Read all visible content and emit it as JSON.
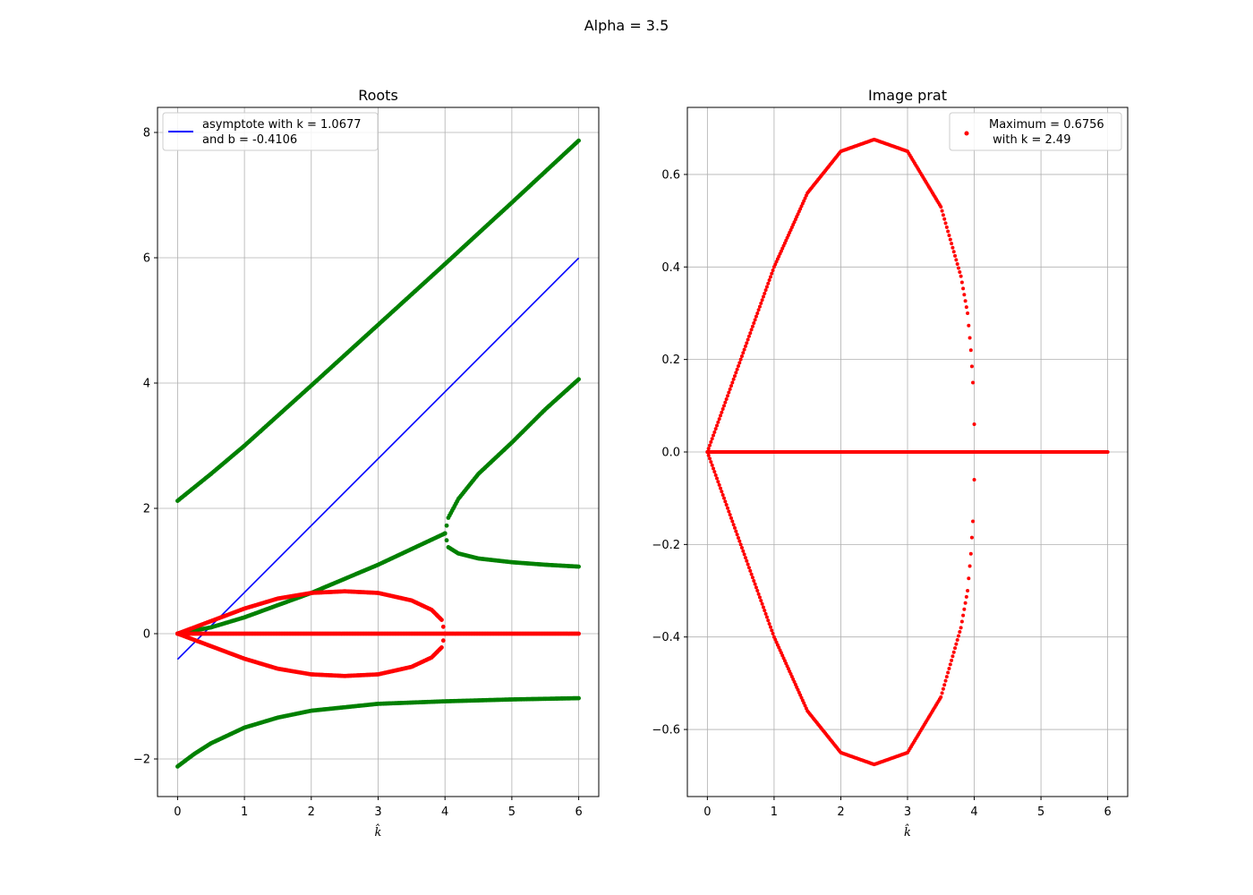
{
  "figure": {
    "suptitle": "Alpha = 3.5"
  },
  "chart_data": [
    {
      "type": "scatter",
      "title": "Roots",
      "xlabel": "k̂",
      "ylabel": "",
      "xlim": [
        -0.3,
        6.3
      ],
      "ylim": [
        -2.6,
        8.4
      ],
      "xticks": [
        0,
        1,
        2,
        3,
        4,
        5,
        6
      ],
      "yticks": [
        -2,
        0,
        2,
        4,
        6,
        8
      ],
      "grid": true,
      "legend_position": "top-left",
      "legend": [
        {
          "label_line1": "asymptote with k = 1.0677",
          "label_line2": "and b = -0.4106",
          "color": "#0000ff",
          "marker": "line"
        }
      ],
      "asymptote": {
        "slope": 1.0677,
        "intercept": -0.4106,
        "x": [
          0,
          6
        ],
        "color": "#0000ff"
      },
      "series_colors": {
        "real_part": "#008000",
        "imag_part": "#ff0000"
      },
      "series": [
        {
          "kind": "real",
          "x": [
            0,
            0.5,
            1,
            2,
            3,
            4,
            5,
            6
          ],
          "y": [
            2.12,
            2.55,
            3.0,
            3.96,
            4.93,
            5.9,
            6.88,
            7.87
          ]
        },
        {
          "kind": "real",
          "x": [
            0,
            0.5,
            1,
            2,
            3,
            4
          ],
          "y": [
            0,
            0.1,
            0.26,
            0.65,
            1.1,
            1.6
          ]
        },
        {
          "kind": "real",
          "x": [
            4,
            4.05,
            4.2,
            4.5,
            5,
            5.5,
            6
          ],
          "y": [
            1.6,
            1.85,
            2.15,
            2.55,
            3.05,
            3.58,
            4.06
          ]
        },
        {
          "kind": "real",
          "x": [
            4,
            4.05,
            4.2,
            4.5,
            5,
            5.5,
            6
          ],
          "y": [
            1.6,
            1.38,
            1.28,
            1.2,
            1.14,
            1.1,
            1.07
          ]
        },
        {
          "kind": "real",
          "x": [
            0,
            0.25,
            0.5,
            1,
            1.5,
            2,
            3,
            4,
            5,
            6
          ],
          "y": [
            -2.12,
            -1.92,
            -1.75,
            -1.5,
            -1.34,
            -1.23,
            -1.12,
            -1.08,
            -1.05,
            -1.03
          ]
        },
        {
          "kind": "imag",
          "x": [
            0,
            0.5,
            1,
            1.5,
            2,
            2.5,
            3,
            3.5,
            3.8,
            3.95,
            4.0
          ],
          "y": [
            0,
            0.2,
            0.4,
            0.56,
            0.65,
            0.6756,
            0.65,
            0.53,
            0.38,
            0.22,
            0
          ]
        },
        {
          "kind": "imag",
          "x": [
            0,
            0.5,
            1,
            1.5,
            2,
            2.5,
            3,
            3.5,
            3.8,
            3.95,
            4.0
          ],
          "y": [
            0,
            -0.2,
            -0.4,
            -0.56,
            -0.65,
            -0.6756,
            -0.65,
            -0.53,
            -0.38,
            -0.22,
            0
          ]
        },
        {
          "kind": "imag",
          "x": [
            0,
            6
          ],
          "y": [
            0,
            0
          ]
        }
      ]
    },
    {
      "type": "scatter",
      "title": "Image prat",
      "xlabel": "k̂",
      "ylabel": "",
      "xlim": [
        -0.3,
        6.3
      ],
      "ylim": [
        -0.745,
        0.745
      ],
      "xticks": [
        0,
        1,
        2,
        3,
        4,
        5,
        6
      ],
      "yticks": [
        -0.6,
        -0.4,
        -0.2,
        0.0,
        0.2,
        0.4,
        0.6
      ],
      "grid": true,
      "legend_position": "top-right",
      "legend": [
        {
          "label_line1": "Maximum = 0.6756",
          "label_line2": " with k = 2.49",
          "color": "#ff0000",
          "marker": "dot"
        }
      ],
      "point_color": "#ff0000",
      "series": [
        {
          "kind": "upper",
          "x": [
            0,
            0.25,
            0.5,
            1,
            1.5,
            2,
            2.5,
            3,
            3.5,
            3.8,
            3.9,
            3.95,
            3.98,
            4.0
          ],
          "y": [
            0,
            0.1,
            0.2,
            0.4,
            0.56,
            0.65,
            0.6756,
            0.65,
            0.53,
            0.38,
            0.3,
            0.22,
            0.15,
            0.06
          ]
        },
        {
          "kind": "lower",
          "x": [
            0,
            0.25,
            0.5,
            1,
            1.5,
            2,
            2.5,
            3,
            3.5,
            3.8,
            3.9,
            3.95,
            3.98,
            4.0
          ],
          "y": [
            0,
            -0.1,
            -0.2,
            -0.4,
            -0.56,
            -0.65,
            -0.6756,
            -0.65,
            -0.53,
            -0.38,
            -0.3,
            -0.22,
            -0.15,
            -0.06
          ]
        },
        {
          "kind": "zero",
          "x": [
            0,
            6
          ],
          "y": [
            0,
            0
          ]
        }
      ]
    }
  ]
}
